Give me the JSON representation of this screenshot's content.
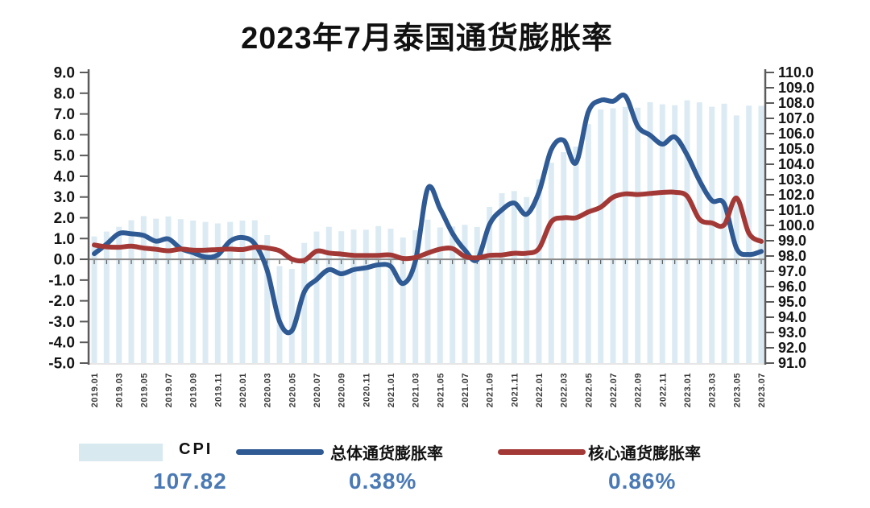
{
  "title": "2023年7月泰国通货膨胀率",
  "values_row": {
    "cpi": "107.82",
    "headline": "0.38%",
    "core": "0.86%"
  },
  "colors": {
    "bar": "#DCEBF3",
    "bar_legend": "#D8E9F0",
    "headline_line": "#2F5A94",
    "core_line": "#A33936",
    "value_text": "#4A79B4",
    "zero_line": "#8A8A8A",
    "axis": "#5A5A5A",
    "axis_label": "#141414",
    "x_label": "#3B3B3B"
  },
  "chart_data": {
    "type": "bar",
    "subtype": "bar+line combo, dual axis",
    "title": "2023年7月泰国通货膨胀率",
    "x": [
      "2019.01",
      "2019.02",
      "2019.03",
      "2019.04",
      "2019.05",
      "2019.06",
      "2019.07",
      "2019.08",
      "2019.09",
      "2019.10",
      "2019.11",
      "2019.12",
      "2020.01",
      "2020.02",
      "2020.03",
      "2020.04",
      "2020.05",
      "2020.06",
      "2020.07",
      "2020.08",
      "2020.09",
      "2020.10",
      "2020.11",
      "2020.12",
      "2021.01",
      "2021.02",
      "2021.03",
      "2021.04",
      "2021.05",
      "2021.06",
      "2021.07",
      "2021.08",
      "2021.09",
      "2021.10",
      "2021.11",
      "2021.12",
      "2022.01",
      "2022.02",
      "2022.03",
      "2022.04",
      "2022.05",
      "2022.06",
      "2022.07",
      "2022.08",
      "2022.09",
      "2022.10",
      "2022.11",
      "2022.12",
      "2023.01",
      "2023.02",
      "2023.03",
      "2023.04",
      "2023.05",
      "2023.06",
      "2023.07"
    ],
    "x_label_every": 2,
    "left_axis": {
      "min": -5,
      "max": 9,
      "step": 1,
      "tick_format": "0.0"
    },
    "right_axis": {
      "min": 91,
      "max": 110,
      "step": 1,
      "tick_format": "0.0"
    },
    "grid": false,
    "legend_position": "bottom",
    "series": [
      {
        "name": "CPI",
        "type": "bar",
        "axis": "right",
        "color": "#DCEBF3",
        "values": [
          99.28,
          99.6,
          99.91,
          100.34,
          100.61,
          100.44,
          100.59,
          100.41,
          100.32,
          100.23,
          100.13,
          100.23,
          100.32,
          100.34,
          99.37,
          97.34,
          97.15,
          98.86,
          99.6,
          99.91,
          99.62,
          99.73,
          99.72,
          99.96,
          99.79,
          99.21,
          99.69,
          100.38,
          99.87,
          99.93,
          100.04,
          99.9,
          101.21,
          102.11,
          102.25,
          101.86,
          103.01,
          104.1,
          104.79,
          105.15,
          106.62,
          107.58,
          107.66,
          107.75,
          107.7,
          108.06,
          107.92,
          107.86,
          108.18,
          108.05,
          107.76,
          107.96,
          107.19,
          107.83,
          107.82
        ]
      },
      {
        "name": "总体通货膨胀率",
        "type": "line",
        "axis": "left",
        "color": "#2F5A94",
        "values": [
          0.27,
          0.73,
          1.24,
          1.23,
          1.15,
          0.87,
          0.98,
          0.52,
          0.32,
          0.11,
          0.21,
          0.87,
          1.05,
          0.74,
          -0.54,
          -2.99,
          -3.44,
          -1.57,
          -0.98,
          -0.5,
          -0.7,
          -0.5,
          -0.41,
          -0.27,
          -0.34,
          -1.17,
          -0.08,
          3.41,
          2.44,
          1.25,
          0.45,
          -0.02,
          1.68,
          2.38,
          2.71,
          2.17,
          3.23,
          5.28,
          5.73,
          4.65,
          7.1,
          7.66,
          7.61,
          7.86,
          6.41,
          5.98,
          5.55,
          5.89,
          5.02,
          3.79,
          2.83,
          2.67,
          0.53,
          0.23,
          0.38
        ]
      },
      {
        "name": "核心通货膨胀率",
        "type": "line",
        "axis": "left",
        "color": "#A33936",
        "values": [
          0.69,
          0.6,
          0.58,
          0.63,
          0.54,
          0.48,
          0.41,
          0.49,
          0.44,
          0.44,
          0.47,
          0.49,
          0.47,
          0.58,
          0.54,
          0.41,
          0.01,
          -0.05,
          0.39,
          0.3,
          0.25,
          0.19,
          0.18,
          0.19,
          0.21,
          0.04,
          0.09,
          0.3,
          0.49,
          0.52,
          0.14,
          0.07,
          0.19,
          0.21,
          0.29,
          0.29,
          0.52,
          1.8,
          2.0,
          2.0,
          2.28,
          2.51,
          2.99,
          3.15,
          3.12,
          3.17,
          3.22,
          3.23,
          3.04,
          1.93,
          1.75,
          1.66,
          2.95,
          1.25,
          0.86
        ]
      }
    ],
    "latest": {
      "cpi": 107.82,
      "headline_pct": 0.38,
      "core_pct": 0.86
    }
  }
}
